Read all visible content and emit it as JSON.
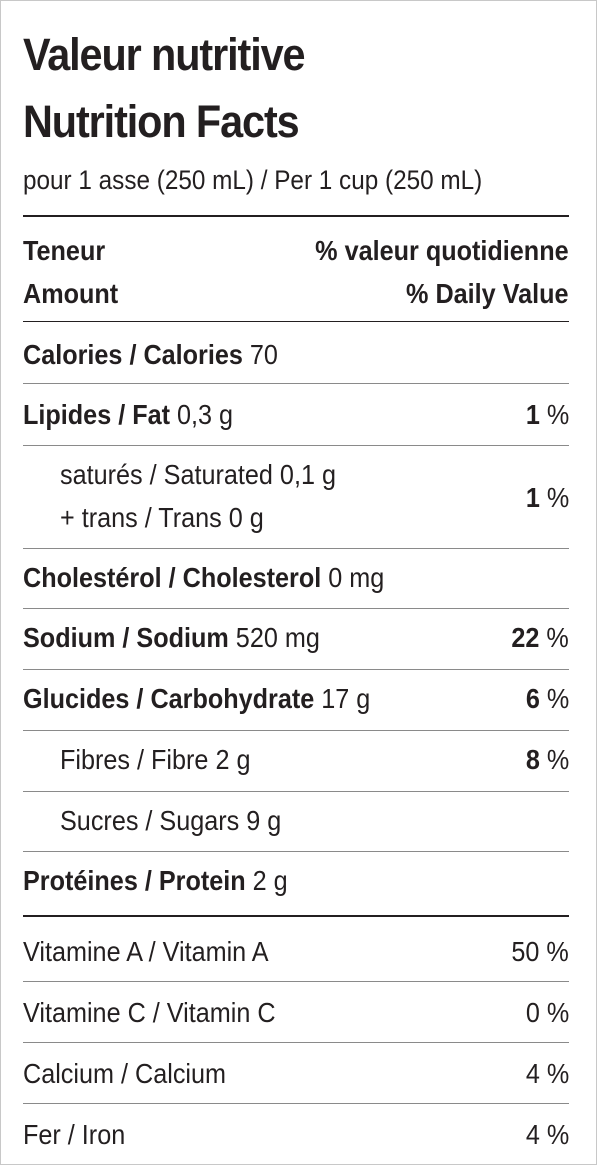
{
  "title_fr": "Valeur nutritive",
  "title_en": "Nutrition Facts",
  "serving": "pour 1 asse (250 mL) / Per 1 cup (250 mL)",
  "header": {
    "amount_fr": "Teneur",
    "amount_en": "Amount",
    "dv_fr": "% valeur quotidienne",
    "dv_en": "% Daily Value"
  },
  "nutrients": {
    "calories": {
      "label": "Calories / Calories",
      "amount": "70"
    },
    "fat": {
      "label": "Lipides / Fat",
      "amount": "0,3 g",
      "dv": "1",
      "unit": "%"
    },
    "saturated": {
      "label": "saturés / Saturated",
      "amount": "0,1 g"
    },
    "trans": {
      "label": "+ trans / Trans",
      "amount": "0 g",
      "dv": "1",
      "unit": "%"
    },
    "cholesterol": {
      "label": "Cholestérol / Cholesterol",
      "amount": "0 mg"
    },
    "sodium": {
      "label": "Sodium / Sodium",
      "amount": "520 mg",
      "dv": "22",
      "unit": "%"
    },
    "carbohydrate": {
      "label": "Glucides / Carbohydrate",
      "amount": "17 g",
      "dv": "6",
      "unit": "%"
    },
    "fibre": {
      "label": "Fibres / Fibre",
      "amount": "2 g",
      "dv": "8",
      "unit": "%"
    },
    "sugars": {
      "label": "Sucres / Sugars",
      "amount": "9 g"
    },
    "protein": {
      "label": "Protéines / Protein",
      "amount": "2 g"
    }
  },
  "vitamins": {
    "vitamin_a": {
      "label": "Vitamine A / Vitamin A",
      "dv": "50 %"
    },
    "vitamin_c": {
      "label": "Vitamine C / Vitamin C",
      "dv": "0 %"
    },
    "calcium": {
      "label": "Calcium / Calcium",
      "dv": "4 %"
    },
    "iron": {
      "label": "Fer / Iron",
      "dv": "4 %"
    }
  }
}
